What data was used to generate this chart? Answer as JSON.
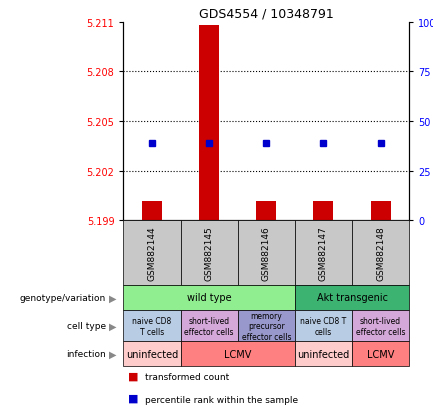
{
  "title": "GDS4554 / 10348791",
  "samples": [
    "GSM882144",
    "GSM882145",
    "GSM882146",
    "GSM882147",
    "GSM882148"
  ],
  "ylim_left": [
    5.199,
    5.211
  ],
  "ylim_right": [
    0,
    100
  ],
  "yticks_left": [
    5.199,
    5.202,
    5.205,
    5.208,
    5.211
  ],
  "yticks_right": [
    0,
    25,
    50,
    75,
    100
  ],
  "ytick_labels_left": [
    "5.199",
    "5.202",
    "5.205",
    "5.208",
    "5.211"
  ],
  "ytick_labels_right": [
    "0",
    "25",
    "50",
    "75",
    "100%"
  ],
  "red_bar_bottom": 5.199,
  "red_heights": [
    5.2002,
    5.2108,
    5.2002,
    5.2002,
    5.2002
  ],
  "blue_y": [
    5.2037,
    5.2037,
    5.2037,
    5.2037,
    5.2037
  ],
  "genotype_cells": [
    {
      "samples": [
        0,
        1,
        2
      ],
      "label": "wild type",
      "color": "#90EE90"
    },
    {
      "samples": [
        3,
        4
      ],
      "label": "Akt transgenic",
      "color": "#3CB371"
    }
  ],
  "cell_type_cells": [
    {
      "samples": [
        0
      ],
      "label": "naive CD8\nT cells",
      "color": "#B8CCE4"
    },
    {
      "samples": [
        1
      ],
      "label": "short-lived\neffector cells",
      "color": "#D4A8D8"
    },
    {
      "samples": [
        2
      ],
      "label": "memory\nprecursor\neffector cells",
      "color": "#9898CC"
    },
    {
      "samples": [
        3
      ],
      "label": "naive CD8 T\ncells",
      "color": "#B8CCE4"
    },
    {
      "samples": [
        4
      ],
      "label": "short-lived\neffector cells",
      "color": "#D4A8D8"
    }
  ],
  "infection_cells": [
    {
      "samples": [
        0
      ],
      "label": "uninfected",
      "color": "#FFCCCC"
    },
    {
      "samples": [
        1,
        2
      ],
      "label": "LCMV",
      "color": "#FF8080"
    },
    {
      "samples": [
        3
      ],
      "label": "uninfected",
      "color": "#FFCCCC"
    },
    {
      "samples": [
        4
      ],
      "label": "LCMV",
      "color": "#FF8080"
    }
  ],
  "row_labels": [
    "genotype/variation",
    "cell type",
    "infection"
  ],
  "legend_red": "transformed count",
  "legend_blue": "percentile rank within the sample",
  "bar_color": "#CC0000",
  "dot_color": "#0000CC",
  "sample_bg": "#C8C8C8"
}
